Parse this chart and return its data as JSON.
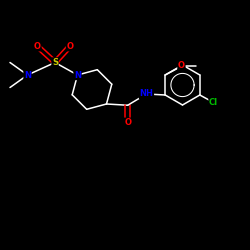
{
  "background_color": "#000000",
  "bond_color": "#ffffff",
  "atom_colors": {
    "O": "#ff0000",
    "N": "#0000ff",
    "S": "#cccc00",
    "Cl": "#00bb00",
    "C": "#ffffff",
    "H": "#ffffff"
  },
  "figsize": [
    2.5,
    2.5
  ],
  "dpi": 100,
  "xlim": [
    0,
    10
  ],
  "ylim": [
    0,
    10
  ],
  "font_size": 6.0,
  "lw": 1.1
}
